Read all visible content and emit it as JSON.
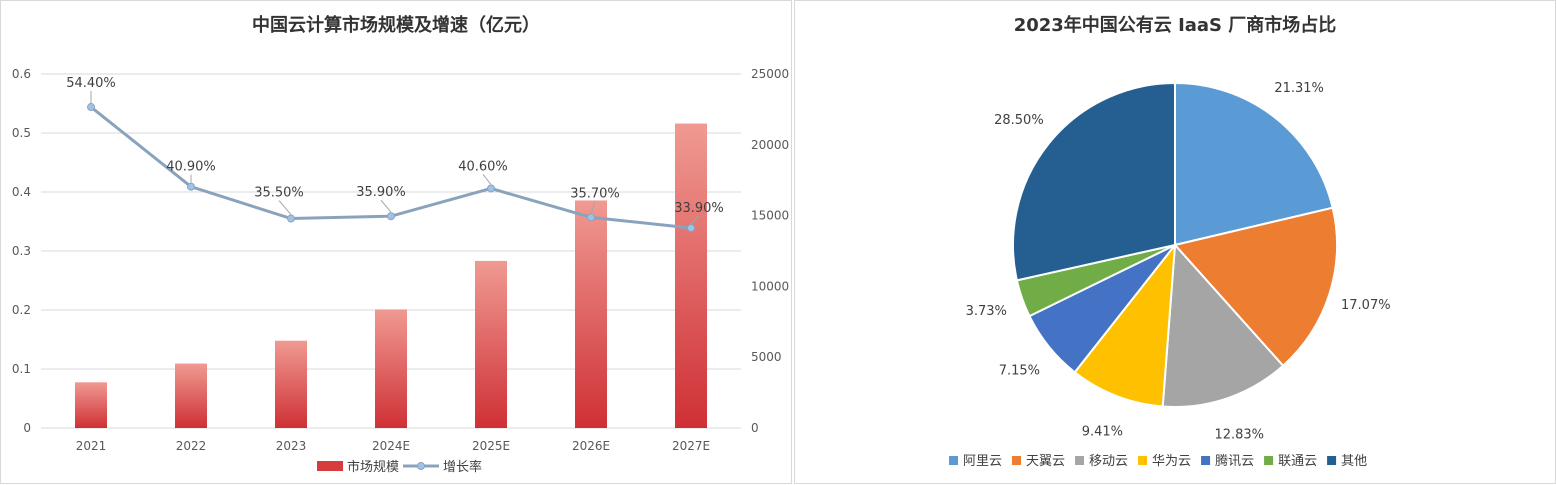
{
  "chart_data": [
    {
      "type": "bar+line",
      "title": "中国云计算市场规模及增速（亿元）",
      "categories": [
        "2021",
        "2022",
        "2023",
        "2024E",
        "2025E",
        "2026E",
        "2027E"
      ],
      "series": [
        {
          "name": "市场规模",
          "type": "bar",
          "axis": "right",
          "values": [
            3229,
            4550,
            6165,
            8378,
            11800,
            16070,
            21500
          ],
          "color": "#d63c3c"
        },
        {
          "name": "增长率",
          "type": "line",
          "axis": "left",
          "values": [
            0.544,
            0.409,
            0.355,
            0.359,
            0.406,
            0.357,
            0.339
          ],
          "labels": [
            "54.40%",
            "40.90%",
            "35.50%",
            "35.90%",
            "40.60%",
            "35.70%",
            "33.90%"
          ],
          "color": "#8aa3bd"
        }
      ],
      "y_left": {
        "ylim": [
          0,
          0.6
        ],
        "ticks": [
          "0",
          "0.1",
          "0.2",
          "0.3",
          "0.4",
          "0.5",
          "0.6"
        ]
      },
      "y_right": {
        "ylim": [
          0,
          25000
        ],
        "ticks": [
          "0",
          "5000",
          "10000",
          "15000",
          "20000",
          "25000"
        ]
      },
      "grid": true,
      "legend": "bottom"
    },
    {
      "type": "pie",
      "title": "2023年中国公有云 IaaS 厂商市场占比",
      "slices": [
        {
          "name": "阿里云",
          "value": 21.31,
          "label": "21.31%",
          "color": "#5b9bd5"
        },
        {
          "name": "天翼云",
          "value": 17.07,
          "label": "17.07%",
          "color": "#ed7d31"
        },
        {
          "name": "移动云",
          "value": 12.83,
          "label": "12.83%",
          "color": "#a5a5a5"
        },
        {
          "name": "华为云",
          "value": 9.41,
          "label": "9.41%",
          "color": "#ffc000"
        },
        {
          "name": "腾讯云",
          "value": 7.15,
          "label": "7.15%",
          "color": "#4472c4"
        },
        {
          "name": "联通云",
          "value": 3.73,
          "label": "3.73%",
          "color": "#70ad47"
        },
        {
          "name": "其他",
          "value": 28.5,
          "label": "28.50%",
          "color": "#255e91"
        }
      ],
      "legend": "bottom"
    }
  ]
}
